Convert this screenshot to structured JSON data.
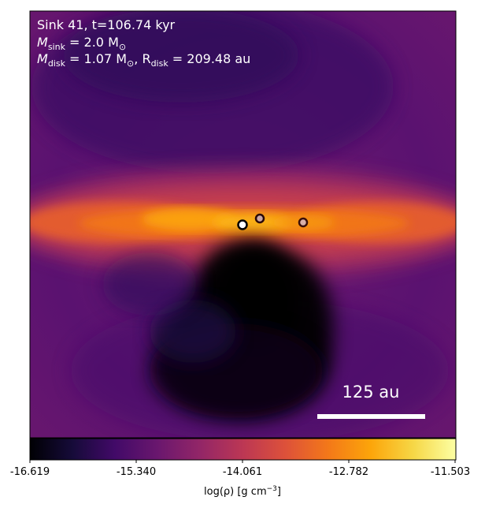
{
  "panel": {
    "sink_line": "Sink 41, t=106.74 kyr",
    "mass_prefix": "M",
    "mass_sub": "sink",
    "mass_value": " = 2.0 M",
    "mass_unit_sub": "⊙",
    "disk_prefix": "M",
    "disk_sub": "disk",
    "disk_value": " = 1.07 M",
    "disk_unit_sub": "⊙",
    "disk_sep": ", R",
    "radius_sub": "disk",
    "radius_value": " = 209.48 au"
  },
  "scale_bar": {
    "label": "125 au"
  },
  "colorbar": {
    "ticks": [
      "-16.619",
      "-15.340",
      "-14.061",
      "-12.782",
      "-11.503"
    ],
    "label_prefix": "log(ρ) [g cm",
    "label_exp": "−3",
    "label_suffix": "]",
    "colormap": "inferno"
  },
  "sinks": [
    {
      "name": "primary-sink",
      "fill": "#ffffff",
      "stroke": "#000000"
    },
    {
      "name": "secondary-sink",
      "fill": "#c9a8a8",
      "stroke": "#2a0a0a"
    },
    {
      "name": "tertiary-sink",
      "fill": "#d9b0a8",
      "stroke": "#3a0f0a"
    }
  ],
  "colors": {
    "background_low": "#000004",
    "envelope": "#4a0e6a",
    "disk": "#f78410",
    "disk_peak": "#fcb519",
    "cavity": "#0a0418"
  }
}
